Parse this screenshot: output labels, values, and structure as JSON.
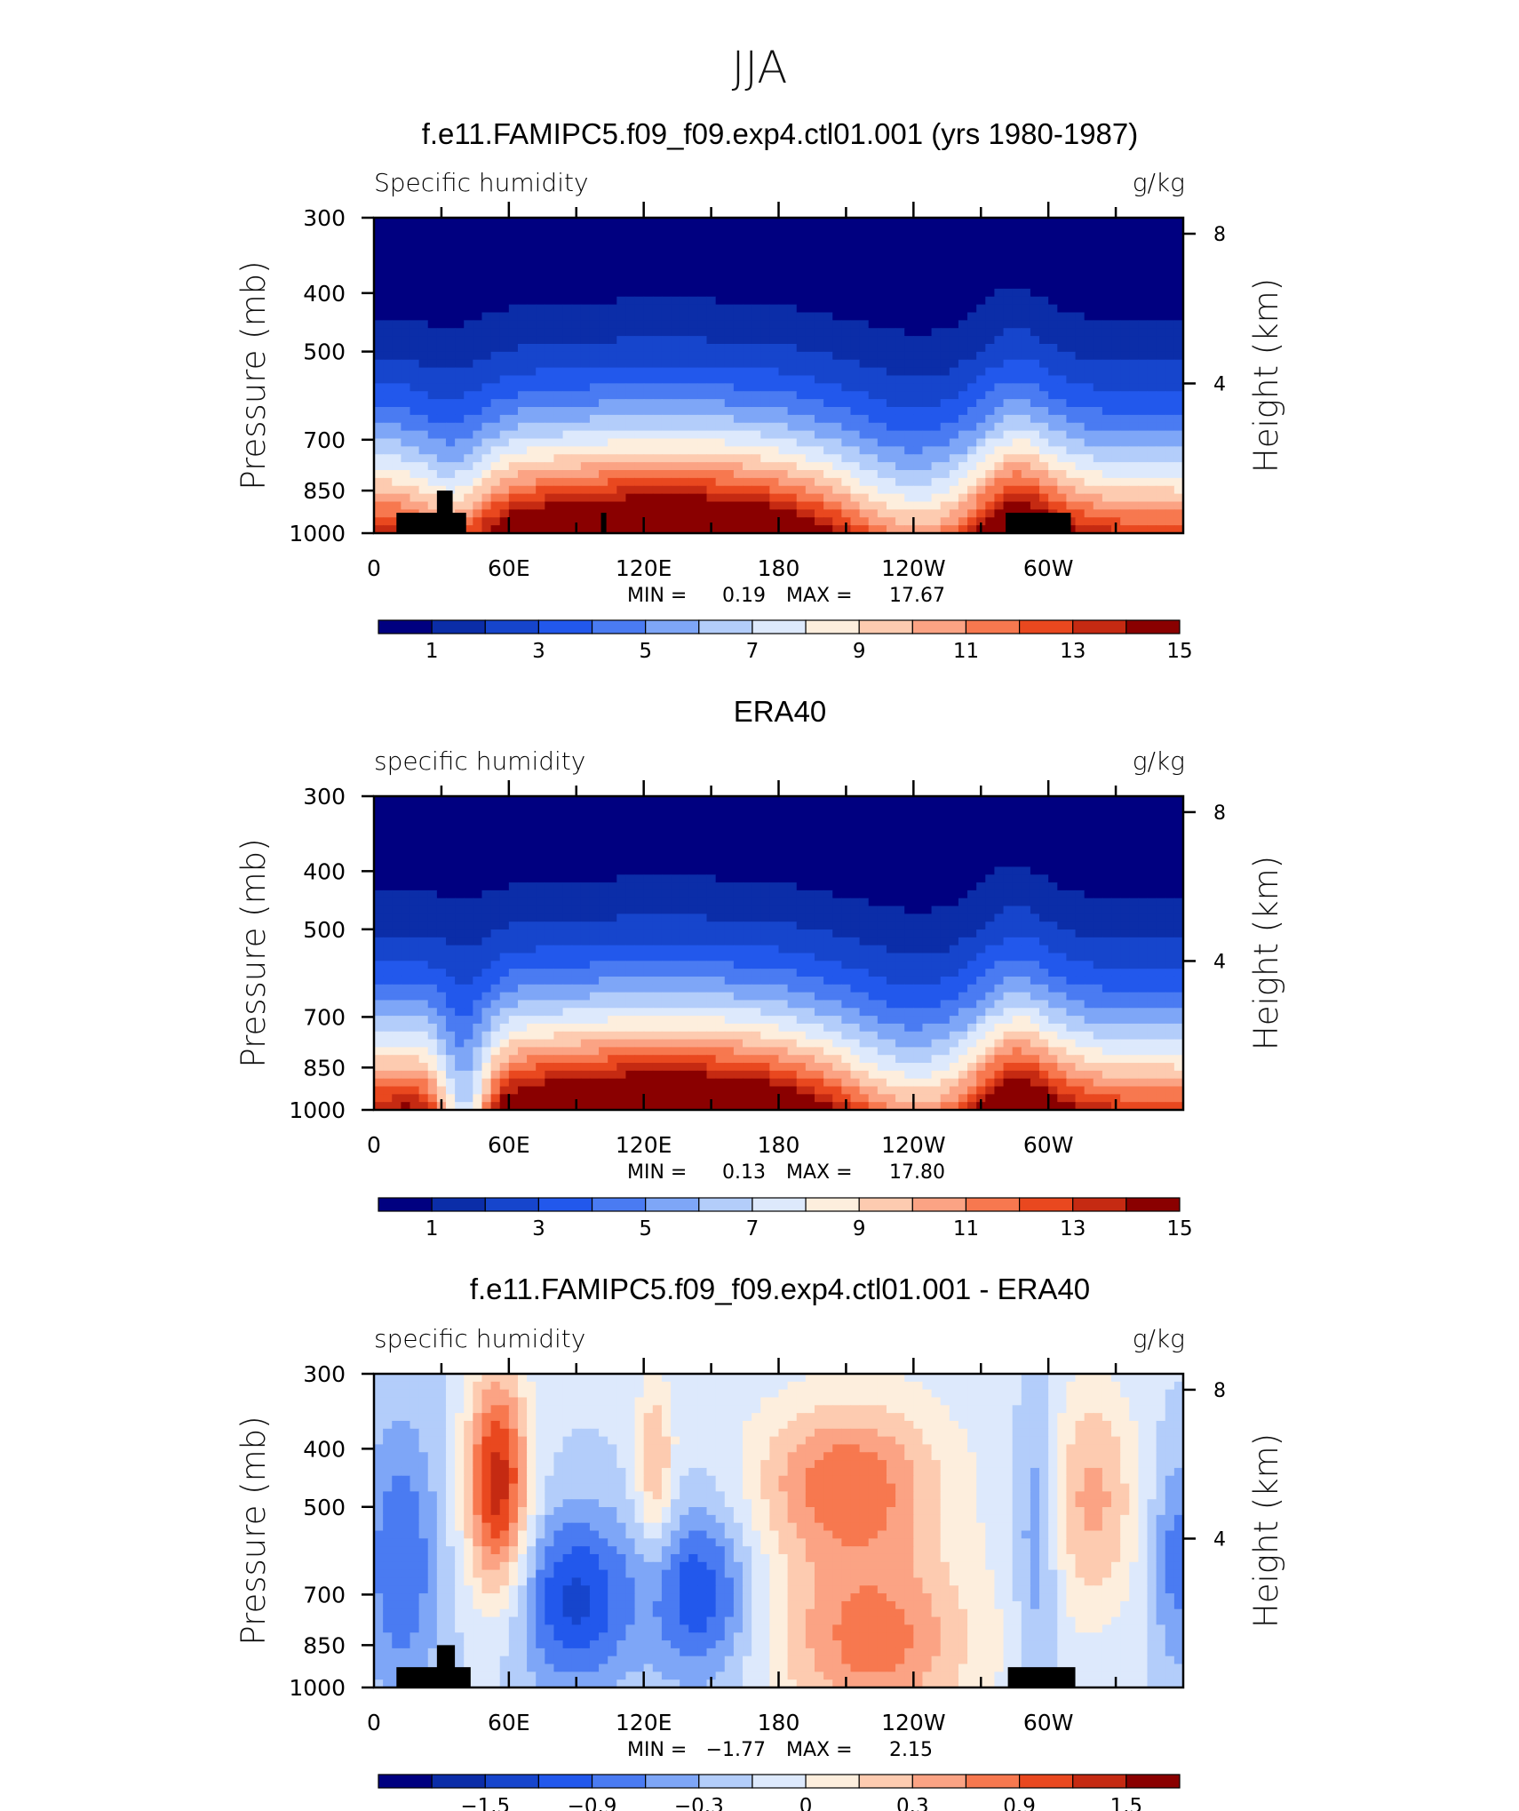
{
  "page": {
    "title": "JJA"
  },
  "colors": {
    "cb_main": [
      "#000080",
      "#0b2da8",
      "#1645cc",
      "#2258ec",
      "#4a7bf2",
      "#7ea6f7",
      "#b3cdfa",
      "#dde9fc",
      "#fdeedd",
      "#fdcbb0",
      "#fba384",
      "#f7784f",
      "#e9481f",
      "#c52a12",
      "#8a0000"
    ],
    "cb_diff": [
      "#000080",
      "#0b2da8",
      "#1645cc",
      "#2258ec",
      "#4a7bf2",
      "#7ea6f7",
      "#b3cdfa",
      "#dde9fc",
      "#fdeedd",
      "#fdcbb0",
      "#fba384",
      "#f7784f",
      "#e9481f",
      "#c52a12",
      "#8a0000"
    ],
    "topography": "#000000"
  },
  "chart_data": [
    {
      "type": "contour",
      "title": "f.e11.FAMIPC5.f09_f09.exp4.ctl01.001 (yrs 1980-1987)",
      "left_label": "Specific humidity",
      "right_label": "g/kg",
      "ylabel": "Pressure (mb)",
      "ylabel_right": "Height (km)",
      "y_ticks": [
        "300",
        "400",
        "500",
        "700",
        "850",
        "1000"
      ],
      "y_values": [
        300,
        400,
        500,
        700,
        850,
        1000
      ],
      "height_ticks": [
        "8",
        "4"
      ],
      "height_values": [
        8,
        4
      ],
      "x_ticks": [
        "0",
        "60E",
        "120E",
        "180",
        "120W",
        "60W"
      ],
      "x_values": [
        0,
        60,
        120,
        180,
        240,
        300
      ],
      "xlim": [
        0,
        360
      ],
      "ylim": [
        1000,
        300
      ],
      "min_label": "MIN =",
      "min_value": "0.19",
      "max_label": "MAX =",
      "max_value": "17.67",
      "colorbar_labels": [
        "1",
        "3",
        "5",
        "7",
        "9",
        "11",
        "13",
        "15"
      ],
      "colorbar_levels": [
        1,
        2,
        3,
        4,
        5,
        6,
        7,
        8,
        9,
        10,
        11,
        12,
        13,
        14
      ],
      "has_topography": true
    },
    {
      "type": "contour",
      "title": "ERA40",
      "left_label": "specific humidity",
      "right_label": "g/kg",
      "ylabel": "Pressure (mb)",
      "ylabel_right": "Height (km)",
      "y_ticks": [
        "300",
        "400",
        "500",
        "700",
        "850",
        "1000"
      ],
      "y_values": [
        300,
        400,
        500,
        700,
        850,
        1000
      ],
      "height_ticks": [
        "8",
        "4"
      ],
      "height_values": [
        8,
        4
      ],
      "x_ticks": [
        "0",
        "60E",
        "120E",
        "180",
        "120W",
        "60W"
      ],
      "x_values": [
        0,
        60,
        120,
        180,
        240,
        300
      ],
      "xlim": [
        0,
        360
      ],
      "ylim": [
        1000,
        300
      ],
      "min_label": "MIN =",
      "min_value": "0.13",
      "max_label": "MAX =",
      "max_value": "17.80",
      "colorbar_labels": [
        "1",
        "3",
        "5",
        "7",
        "9",
        "11",
        "13",
        "15"
      ],
      "colorbar_levels": [
        1,
        2,
        3,
        4,
        5,
        6,
        7,
        8,
        9,
        10,
        11,
        12,
        13,
        14
      ],
      "has_topography": false
    },
    {
      "type": "contour",
      "title": "f.e11.FAMIPC5.f09_f09.exp4.ctl01.001 - ERA40",
      "left_label": "specific humidity",
      "right_label": "g/kg",
      "ylabel": "Pressure (mb)",
      "ylabel_right": "Height (km)",
      "y_ticks": [
        "300",
        "400",
        "500",
        "700",
        "850",
        "1000"
      ],
      "y_values": [
        300,
        400,
        500,
        700,
        850,
        1000
      ],
      "height_ticks": [
        "8",
        "4"
      ],
      "height_values": [
        8,
        4
      ],
      "x_ticks": [
        "0",
        "60E",
        "120E",
        "180",
        "120W",
        "60W"
      ],
      "x_values": [
        0,
        60,
        120,
        180,
        240,
        300
      ],
      "xlim": [
        0,
        360
      ],
      "ylim": [
        1000,
        300
      ],
      "min_label": "MIN =",
      "min_value": "−1.77",
      "max_label": "MAX =",
      "max_value": "2.15",
      "colorbar_labels": [
        "−1.5",
        "−0.9",
        "−0.3",
        "0",
        "0.3",
        "0.9",
        "1.5"
      ],
      "colorbar_levels": [
        -1.8,
        -1.5,
        -1.2,
        -0.9,
        -0.6,
        -0.3,
        0,
        0.3,
        0.6,
        0.9,
        1.2,
        1.5,
        1.8
      ],
      "has_topography": true
    }
  ]
}
